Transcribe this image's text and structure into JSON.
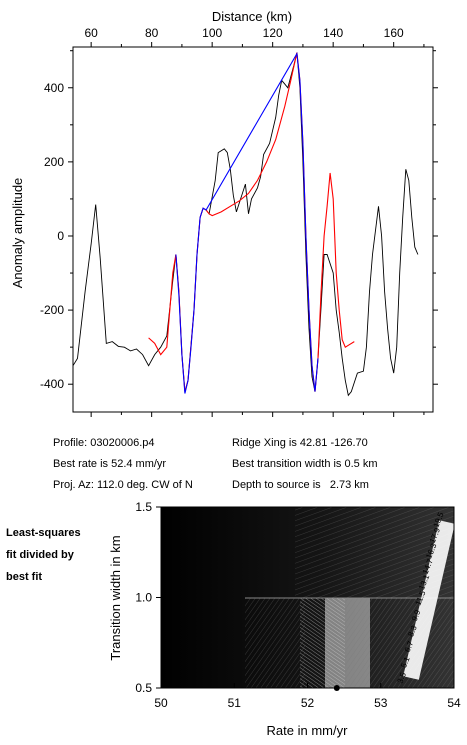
{
  "chart_data": [
    {
      "type": "line",
      "xlabel": "Distance (km)",
      "ylabel": "Anomaly amplitude",
      "xlim": [
        54,
        173
      ],
      "ylim": [
        -475,
        510
      ],
      "xticks": [
        60,
        80,
        100,
        120,
        140,
        160
      ],
      "yticks": [
        -400,
        -200,
        0,
        200,
        400
      ],
      "grid": false,
      "series": [
        {
          "color": "#000000",
          "points": [
            [
              54,
              -350
            ],
            [
              55.5,
              -330
            ],
            [
              58,
              -150
            ],
            [
              60,
              -20
            ],
            [
              61.5,
              85
            ],
            [
              63,
              -60
            ],
            [
              65,
              -290
            ],
            [
              67,
              -285
            ],
            [
              69,
              -298
            ],
            [
              71,
              -300
            ],
            [
              73,
              -310
            ],
            [
              75,
              -305
            ],
            [
              77,
              -320
            ],
            [
              79,
              -350
            ],
            [
              81,
              -320
            ],
            [
              83,
              -300
            ],
            [
              85,
              -270
            ],
            [
              87,
              -120
            ],
            [
              88,
              -50
            ],
            [
              89,
              -150
            ],
            [
              90,
              -320
            ],
            [
              91,
              -420
            ],
            [
              92,
              -390
            ],
            [
              94,
              -200
            ],
            [
              95,
              -50
            ],
            [
              96,
              50
            ],
            [
              97,
              75
            ],
            [
              98,
              70
            ],
            [
              99,
              60
            ],
            [
              101,
              150
            ],
            [
              102,
              225
            ],
            [
              104,
              235
            ],
            [
              105,
              225
            ],
            [
              106,
              180
            ],
            [
              107,
              110
            ],
            [
              108,
              65
            ],
            [
              109,
              90
            ],
            [
              111,
              140
            ],
            [
              112,
              60
            ],
            [
              113,
              100
            ],
            [
              115,
              130
            ],
            [
              116,
              160
            ],
            [
              117,
              220
            ],
            [
              119,
              250
            ],
            [
              121,
              320
            ],
            [
              122,
              380
            ],
            [
              123,
              420
            ],
            [
              124,
              410
            ],
            [
              125,
              400
            ],
            [
              127,
              460
            ],
            [
              128,
              495
            ],
            [
              129,
              400
            ],
            [
              130,
              200
            ],
            [
              131,
              -50
            ],
            [
              132,
              -250
            ],
            [
              133,
              -380
            ],
            [
              134,
              -420
            ],
            [
              135,
              -330
            ],
            [
              136,
              -190
            ],
            [
              137,
              -50
            ],
            [
              138,
              -50
            ],
            [
              140,
              -100
            ],
            [
              141,
              -200
            ],
            [
              142,
              -260
            ],
            [
              143,
              -330
            ],
            [
              144,
              -390
            ],
            [
              145,
              -430
            ],
            [
              146,
              -420
            ],
            [
              148,
              -370
            ],
            [
              150,
              -365
            ],
            [
              151,
              -300
            ],
            [
              152,
              -150
            ],
            [
              153,
              -50
            ],
            [
              155,
              80
            ],
            [
              156,
              0
            ],
            [
              157,
              -150
            ],
            [
              158,
              -250
            ],
            [
              159,
              -330
            ],
            [
              160,
              -370
            ],
            [
              161,
              -300
            ],
            [
              162,
              -100
            ],
            [
              163,
              50
            ],
            [
              164,
              180
            ],
            [
              165,
              150
            ],
            [
              166,
              50
            ],
            [
              167,
              -30
            ],
            [
              168,
              -50
            ]
          ]
        },
        {
          "color": "#ff0000",
          "points": [
            [
              79,
              -275
            ],
            [
              81,
              -290
            ],
            [
              83,
              -320
            ],
            [
              85,
              -300
            ],
            [
              86,
              -200
            ],
            [
              87,
              -100
            ],
            [
              88,
              -50
            ],
            [
              89,
              -150
            ],
            [
              90,
              -320
            ],
            [
              91,
              -420
            ],
            [
              92,
              -390
            ],
            [
              94,
              -200
            ],
            [
              95,
              -50
            ],
            [
              96,
              50
            ],
            [
              97,
              75
            ],
            [
              98,
              70
            ],
            [
              99,
              60
            ],
            [
              100,
              55
            ],
            [
              103,
              65
            ],
            [
              106,
              80
            ],
            [
              109,
              95
            ],
            [
              112,
              115
            ],
            [
              115,
              150
            ],
            [
              118,
              200
            ],
            [
              121,
              260
            ],
            [
              124,
              350
            ],
            [
              126,
              420
            ],
            [
              128,
              495
            ],
            [
              129,
              420
            ],
            [
              130,
              250
            ],
            [
              131,
              0
            ],
            [
              132,
              -200
            ],
            [
              133,
              -350
            ],
            [
              134,
              -420
            ],
            [
              135,
              -330
            ],
            [
              136,
              -150
            ],
            [
              137,
              0
            ],
            [
              138,
              80
            ],
            [
              139,
              170
            ],
            [
              140,
              100
            ],
            [
              141,
              -100
            ],
            [
              142,
              -200
            ],
            [
              143,
              -280
            ],
            [
              144,
              -300
            ],
            [
              145,
              -295
            ],
            [
              147,
              -285
            ]
          ]
        },
        {
          "color": "#0000ff",
          "points": [
            [
              88,
              -50
            ],
            [
              89,
              -160
            ],
            [
              90,
              -320
            ],
            [
              91,
              -425
            ],
            [
              92,
              -390
            ],
            [
              93,
              -300
            ],
            [
              94,
              -200
            ],
            [
              95,
              -50
            ],
            [
              96,
              50
            ],
            [
              97,
              75
            ],
            [
              98,
              70
            ],
            [
              128,
              492
            ],
            [
              129,
              420
            ],
            [
              130,
              250
            ],
            [
              131,
              0
            ],
            [
              132,
              -200
            ],
            [
              133,
              -350
            ],
            [
              134,
              -420
            ],
            [
              135,
              -330
            ]
          ]
        }
      ]
    },
    {
      "type": "heatmap",
      "xlabel": "Rate in mm/yr",
      "ylabel": "Transition width in km",
      "xlim": [
        50,
        54
      ],
      "ylim": [
        0.5,
        1.5
      ],
      "xticks": [
        "50",
        "51",
        "52",
        "53",
        "54"
      ],
      "yticks": [
        "0.5",
        "1.0",
        "1.5"
      ],
      "best_fit": {
        "rate": 52.4,
        "width": 0.5
      },
      "contour_labels": [
        "19.5",
        "17.9",
        "16.3",
        "14.7",
        "13.1",
        "11.5",
        "9.9",
        "8.3",
        "6.7",
        "5.1",
        "3.5"
      ]
    }
  ],
  "info": {
    "profile": "Profile: 03020006.p4",
    "ridge": "Ridge Xing is 42.81 -126.70",
    "best_rate": "Best rate is 52.4 mm/yr",
    "best_width": "Best transition width is 0.5 km",
    "proj": "Proj. Az: 112.0 deg. CW of N",
    "depth": "Depth to source is   2.73 km"
  },
  "side_label": [
    "Least-squares",
    "fit divided by",
    "best fit"
  ]
}
